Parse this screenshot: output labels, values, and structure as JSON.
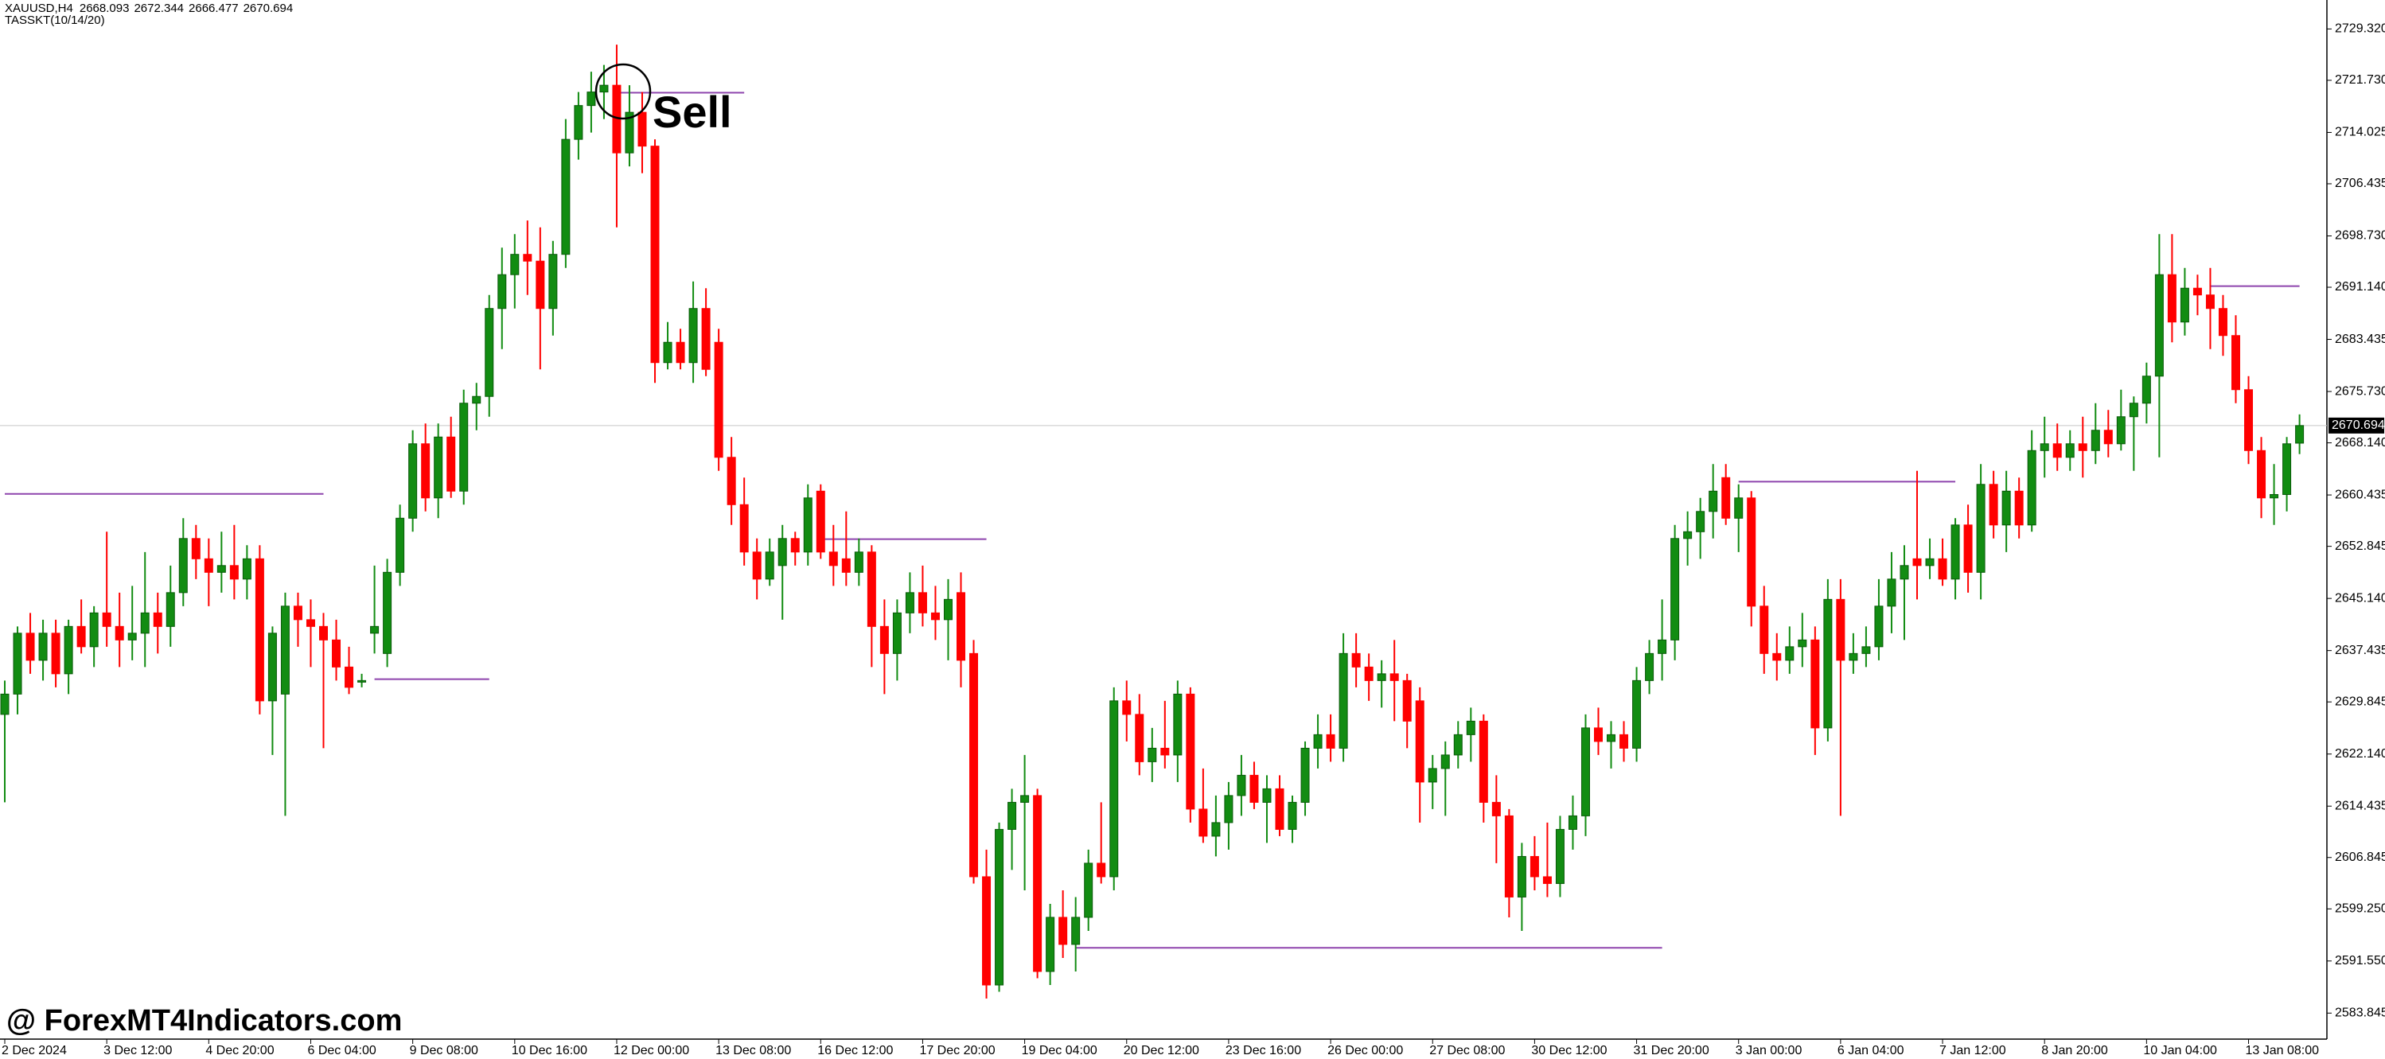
{
  "chart_data": {
    "type": "candlestick",
    "symbol": "XAUUSD,H4",
    "indicator": "TASSKT(10/14/20)",
    "annotation": "Sell",
    "watermark": "@ ForexMT4Indicators.com",
    "current_price": 2670.694,
    "up_color": "#128c12",
    "down_color": "#ff0000",
    "level_color": "#8e44ad",
    "price_line_color": "#c8c8c8",
    "ylim": [
      2580.0,
      2733.6
    ],
    "yticks": [
      {
        "value": 2729.32,
        "label": "2729.320"
      },
      {
        "value": 2721.73,
        "label": "2721.730"
      },
      2714.025,
      2706.435,
      {
        "value": 2698.73,
        "label": "2698.730"
      },
      {
        "value": 2691.14,
        "label": "2691.140"
      },
      2683.435,
      {
        "value": 2675.73,
        "label": "2675.730"
      },
      {
        "value": 2668.14,
        "label": "2668.140"
      },
      2660.435,
      2652.845,
      {
        "value": 2645.14,
        "label": "2645.140"
      },
      2637.435,
      2629.845,
      {
        "value": 2622.14,
        "label": "2622.140"
      },
      2614.435,
      2606.845,
      {
        "value": 2599.25,
        "label": "2599.250"
      },
      {
        "value": 2591.55,
        "label": "2591.550"
      },
      2583.845
    ],
    "categories": [
      "2 Dec 2024",
      null,
      null,
      null,
      null,
      null,
      null,
      null,
      "3 Dec 12:00",
      null,
      null,
      null,
      null,
      null,
      null,
      null,
      "4 Dec 20:00",
      null,
      null,
      null,
      null,
      null,
      null,
      null,
      "6 Dec 04:00",
      null,
      null,
      null,
      null,
      null,
      null,
      null,
      "9 Dec 08:00",
      null,
      null,
      null,
      null,
      null,
      null,
      null,
      "10 Dec 16:00",
      null,
      null,
      null,
      null,
      null,
      null,
      null,
      "12 Dec 00:00",
      null,
      null,
      null,
      null,
      null,
      null,
      null,
      "13 Dec 08:00",
      null,
      null,
      null,
      null,
      null,
      null,
      null,
      "16 Dec 12:00",
      null,
      null,
      null,
      null,
      null,
      null,
      null,
      "17 Dec 20:00",
      null,
      null,
      null,
      null,
      null,
      null,
      null,
      "19 Dec 04:00",
      null,
      null,
      null,
      null,
      null,
      null,
      null,
      "20 Dec 12:00",
      null,
      null,
      null,
      null,
      null,
      null,
      null,
      "23 Dec 16:00",
      null,
      null,
      null,
      null,
      null,
      null,
      null,
      "26 Dec 00:00",
      null,
      null,
      null,
      null,
      null,
      null,
      null,
      "27 Dec 08:00",
      null,
      null,
      null,
      null,
      null,
      null,
      null,
      "30 Dec 12:00",
      null,
      null,
      null,
      null,
      null,
      null,
      null,
      "31 Dec 20:00",
      null,
      null,
      null,
      null,
      null,
      null,
      null,
      "3 Jan 00:00",
      null,
      null,
      null,
      null,
      null,
      null,
      null,
      "6 Jan 04:00",
      null,
      null,
      null,
      null,
      null,
      null,
      null,
      "7 Jan 12:00",
      null,
      null,
      null,
      null,
      null,
      null,
      null,
      "8 Jan 20:00",
      null,
      null,
      null,
      null,
      null,
      null,
      null,
      "10 Jan 04:00",
      null,
      null,
      null,
      null,
      null,
      null,
      null,
      "13 Jan 08:00",
      null,
      null,
      null,
      null
    ],
    "ohlc": [
      [
        2628,
        2633,
        2615,
        2631
      ],
      [
        2631,
        2641,
        2628,
        2640
      ],
      [
        2640,
        2643,
        2634,
        2636
      ],
      [
        2636,
        2642,
        2633,
        2640
      ],
      [
        2640,
        2642,
        2632,
        2634
      ],
      [
        2634,
        2642,
        2631,
        2641
      ],
      [
        2641,
        2645,
        2637,
        2638
      ],
      [
        2638,
        2644,
        2635,
        2643
      ],
      [
        2643,
        2655,
        2638,
        2641
      ],
      [
        2641,
        2646,
        2635,
        2639
      ],
      [
        2639,
        2647,
        2636,
        2640
      ],
      [
        2640,
        2652,
        2635,
        2643
      ],
      [
        2643,
        2646,
        2637,
        2641
      ],
      [
        2641,
        2650,
        2638,
        2646
      ],
      [
        2646,
        2657,
        2644,
        2654
      ],
      [
        2654,
        2656,
        2648,
        2651
      ],
      [
        2651,
        2654,
        2644,
        2649
      ],
      [
        2649,
        2655,
        2646,
        2650
      ],
      [
        2650,
        2656,
        2645,
        2648
      ],
      [
        2648,
        2653,
        2645,
        2651
      ],
      [
        2651,
        2653,
        2628,
        2630
      ],
      [
        2630,
        2641,
        2622,
        2640
      ],
      [
        2631,
        2646,
        2613,
        2644
      ],
      [
        2644,
        2646,
        2638,
        2642
      ],
      [
        2642,
        2645,
        2635,
        2641
      ],
      [
        2641,
        2643,
        2623,
        2639
      ],
      [
        2639,
        2642,
        2633,
        2635
      ],
      [
        2635,
        2638,
        2631,
        2632
      ],
      [
        2633,
        2634,
        2632,
        2633
      ],
      [
        2640,
        2650,
        2637,
        2641
      ],
      [
        2637,
        2651,
        2635,
        2649
      ],
      [
        2649,
        2659,
        2647,
        2657
      ],
      [
        2657,
        2670,
        2655,
        2668
      ],
      [
        2668,
        2671,
        2658,
        2660
      ],
      [
        2660,
        2671,
        2657,
        2669
      ],
      [
        2669,
        2672,
        2660,
        2661
      ],
      [
        2661,
        2676,
        2659,
        2674
      ],
      [
        2674,
        2677,
        2670,
        2675
      ],
      [
        2675,
        2690,
        2672,
        2688
      ],
      [
        2688,
        2697,
        2682,
        2693
      ],
      [
        2693,
        2699,
        2688,
        2696
      ],
      [
        2696,
        2701,
        2690,
        2695
      ],
      [
        2695,
        2700,
        2679,
        2688
      ],
      [
        2688,
        2698,
        2684,
        2696
      ],
      [
        2696,
        2716,
        2694,
        2713
      ],
      [
        2713,
        2720,
        2710,
        2718
      ],
      [
        2718,
        2723,
        2714,
        2720
      ],
      [
        2720,
        2724,
        2716,
        2721
      ],
      [
        2721,
        2727,
        2700,
        2711
      ],
      [
        2711,
        2721,
        2709,
        2717
      ],
      [
        2717,
        2720,
        2708,
        2712
      ],
      [
        2712,
        2713,
        2677,
        2680
      ],
      [
        2680,
        2686,
        2679,
        2683
      ],
      [
        2683,
        2685,
        2679,
        2680
      ],
      [
        2680,
        2692,
        2677,
        2688
      ],
      [
        2688,
        2691,
        2678,
        2679
      ],
      [
        2683,
        2685,
        2664,
        2666
      ],
      [
        2666,
        2669,
        2656,
        2659
      ],
      [
        2659,
        2663,
        2650,
        2652
      ],
      [
        2652,
        2654,
        2645,
        2648
      ],
      [
        2648,
        2654,
        2647,
        2652
      ],
      [
        2650,
        2656,
        2642,
        2654
      ],
      [
        2654,
        2655,
        2650,
        2652
      ],
      [
        2652,
        2662,
        2650,
        2660
      ],
      [
        2661,
        2662,
        2651,
        2652
      ],
      [
        2652,
        2656,
        2647,
        2650
      ],
      [
        2651,
        2658,
        2647,
        2649
      ],
      [
        2649,
        2654,
        2647,
        2652
      ],
      [
        2652,
        2653,
        2635,
        2641
      ],
      [
        2641,
        2645,
        2631,
        2637
      ],
      [
        2637,
        2645,
        2633,
        2643
      ],
      [
        2643,
        2649,
        2640,
        2646
      ],
      [
        2646,
        2650,
        2641,
        2643
      ],
      [
        2643,
        2647,
        2639,
        2642
      ],
      [
        2642,
        2648,
        2636,
        2645
      ],
      [
        2646,
        2649,
        2632,
        2636
      ],
      [
        2637,
        2639,
        2603,
        2604
      ],
      [
        2604,
        2608,
        2586,
        2588
      ],
      [
        2588,
        2612,
        2587,
        2611
      ],
      [
        2611,
        2617,
        2605,
        2615
      ],
      [
        2615,
        2622,
        2602,
        2616
      ],
      [
        2616,
        2617,
        2589,
        2590
      ],
      [
        2590,
        2600,
        2588,
        2598
      ],
      [
        2598,
        2602,
        2592,
        2594
      ],
      [
        2594,
        2601,
        2590,
        2598
      ],
      [
        2598,
        2608,
        2596,
        2606
      ],
      [
        2606,
        2615,
        2603,
        2604
      ],
      [
        2604,
        2632,
        2602,
        2630
      ],
      [
        2630,
        2633,
        2624,
        2628
      ],
      [
        2628,
        2631,
        2619,
        2621
      ],
      [
        2621,
        2626,
        2618,
        2623
      ],
      [
        2623,
        2630,
        2620,
        2622
      ],
      [
        2622,
        2633,
        2618,
        2631
      ],
      [
        2631,
        2632,
        2612,
        2614
      ],
      [
        2614,
        2620,
        2609,
        2610
      ],
      [
        2610,
        2616,
        2607,
        2612
      ],
      [
        2612,
        2618,
        2608,
        2616
      ],
      [
        2616,
        2622,
        2613,
        2619
      ],
      [
        2619,
        2621,
        2614,
        2615
      ],
      [
        2615,
        2619,
        2609,
        2617
      ],
      [
        2617,
        2619,
        2610,
        2611
      ],
      [
        2611,
        2616,
        2609,
        2615
      ],
      [
        2615,
        2624,
        2613,
        2623
      ],
      [
        2623,
        2628,
        2620,
        2625
      ],
      [
        2625,
        2628,
        2621,
        2623
      ],
      [
        2623,
        2640,
        2621,
        2637
      ],
      [
        2637,
        2640,
        2632,
        2635
      ],
      [
        2635,
        2637,
        2630,
        2633
      ],
      [
        2633,
        2636,
        2629,
        2634
      ],
      [
        2634,
        2639,
        2627,
        2633
      ],
      [
        2633,
        2634,
        2623,
        2627
      ],
      [
        2630,
        2632,
        2612,
        2618
      ],
      [
        2618,
        2622,
        2614,
        2620
      ],
      [
        2620,
        2624,
        2613,
        2622
      ],
      [
        2622,
        2627,
        2620,
        2625
      ],
      [
        2625,
        2629,
        2621,
        2627
      ],
      [
        2627,
        2628,
        2612,
        2615
      ],
      [
        2615,
        2619,
        2606,
        2613
      ],
      [
        2613,
        2614,
        2598,
        2601
      ],
      [
        2601,
        2609,
        2596,
        2607
      ],
      [
        2607,
        2610,
        2602,
        2604
      ],
      [
        2604,
        2612,
        2601,
        2603
      ],
      [
        2603,
        2613,
        2601,
        2611
      ],
      [
        2611,
        2616,
        2608,
        2613
      ],
      [
        2613,
        2628,
        2610,
        2626
      ],
      [
        2626,
        2629,
        2622,
        2624
      ],
      [
        2624,
        2627,
        2620,
        2625
      ],
      [
        2625,
        2627,
        2621,
        2623
      ],
      [
        2623,
        2635,
        2621,
        2633
      ],
      [
        2633,
        2639,
        2631,
        2637
      ],
      [
        2637,
        2645,
        2633,
        2639
      ],
      [
        2639,
        2656,
        2636,
        2654
      ],
      [
        2654,
        2658,
        2650,
        2655
      ],
      [
        2655,
        2660,
        2651,
        2658
      ],
      [
        2658,
        2665,
        2654,
        2661
      ],
      [
        2663,
        2665,
        2656,
        2657
      ],
      [
        2657,
        2662,
        2652,
        2660
      ],
      [
        2660,
        2661,
        2641,
        2644
      ],
      [
        2644,
        2647,
        2634,
        2637
      ],
      [
        2637,
        2640,
        2633,
        2636
      ],
      [
        2636,
        2641,
        2634,
        2638
      ],
      [
        2638,
        2643,
        2635,
        2639
      ],
      [
        2639,
        2641,
        2622,
        2626
      ],
      [
        2626,
        2648,
        2624,
        2645
      ],
      [
        2645,
        2648,
        2613,
        2636
      ],
      [
        2636,
        2640,
        2634,
        2637
      ],
      [
        2637,
        2641,
        2635,
        2638
      ],
      [
        2638,
        2648,
        2636,
        2644
      ],
      [
        2644,
        2652,
        2640,
        2648
      ],
      [
        2648,
        2653,
        2639,
        2650
      ],
      [
        2651,
        2664,
        2645,
        2650
      ],
      [
        2650,
        2654,
        2648,
        2651
      ],
      [
        2651,
        2654,
        2647,
        2648
      ],
      [
        2648,
        2657,
        2645,
        2656
      ],
      [
        2656,
        2659,
        2646,
        2649
      ],
      [
        2649,
        2665,
        2645,
        2662
      ],
      [
        2662,
        2664,
        2654,
        2656
      ],
      [
        2656,
        2664,
        2652,
        2661
      ],
      [
        2661,
        2663,
        2654,
        2656
      ],
      [
        2656,
        2670,
        2655,
        2667
      ],
      [
        2667,
        2672,
        2663,
        2668
      ],
      [
        2668,
        2671,
        2664,
        2666
      ],
      [
        2666,
        2670,
        2664,
        2668
      ],
      [
        2668,
        2672,
        2663,
        2667
      ],
      [
        2667,
        2674,
        2665,
        2670
      ],
      [
        2670,
        2673,
        2666,
        2668
      ],
      [
        2668,
        2676,
        2667,
        2672
      ],
      [
        2672,
        2675,
        2664,
        2674
      ],
      [
        2674,
        2680,
        2671,
        2678
      ],
      [
        2678,
        2699,
        2666,
        2693
      ],
      [
        2693,
        2699,
        2683,
        2686
      ],
      [
        2686,
        2694,
        2684,
        2691
      ],
      [
        2691,
        2693,
        2687,
        2690
      ],
      [
        2690,
        2694,
        2682,
        2688
      ],
      [
        2688,
        2690,
        2681,
        2684
      ],
      [
        2684,
        2687,
        2674,
        2676
      ],
      [
        2676,
        2678,
        2665,
        2667
      ],
      [
        2667,
        2669,
        2657,
        2660
      ],
      [
        2660,
        2665,
        2656,
        2660.5
      ],
      [
        2660.5,
        2669,
        2658,
        2668
      ],
      [
        2668.093,
        2672.344,
        2666.477,
        2670.694
      ]
    ],
    "levels": [
      {
        "start": 0,
        "end": 25,
        "value": 2660.6
      },
      {
        "start": 29,
        "end": 38,
        "value": 2633.2
      },
      {
        "start": 48,
        "end": 58,
        "value": 2719.9
      },
      {
        "start": 64,
        "end": 77,
        "value": 2653.9
      },
      {
        "start": 84,
        "end": 130,
        "value": 2593.5
      },
      {
        "start": 136,
        "end": 153,
        "value": 2662.4
      },
      {
        "start": 173,
        "end": 180,
        "value": 2691.3
      }
    ]
  }
}
